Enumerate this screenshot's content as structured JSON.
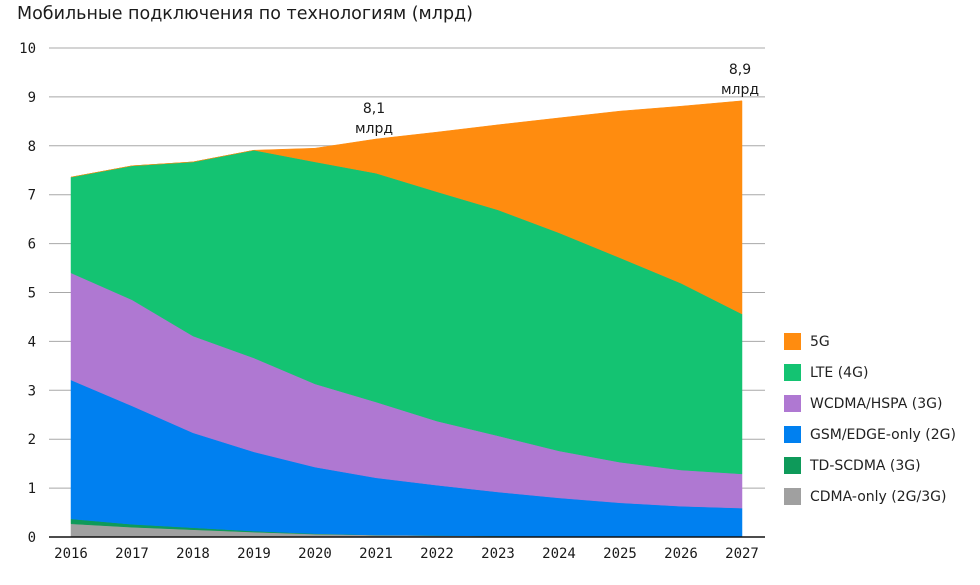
{
  "chart_data": {
    "type": "area",
    "stacked": true,
    "title": "Мобильные подключения по технологиям (млрд)",
    "xlabel": "",
    "ylabel": "",
    "ylim": [
      0,
      10
    ],
    "yticks": [
      "0",
      "1",
      "2",
      "3",
      "4",
      "5",
      "6",
      "7",
      "8",
      "9",
      "10"
    ],
    "grid": true,
    "legend_position": "right",
    "categories": [
      "2016",
      "2017",
      "2018",
      "2019",
      "2020",
      "2021",
      "2022",
      "2023",
      "2024",
      "2025",
      "2026",
      "2027"
    ],
    "series": [
      {
        "name": "CDMA-only (2G/3G)",
        "color": "#a0a0a0",
        "values": [
          0.27,
          0.2,
          0.15,
          0.1,
          0.06,
          0.04,
          0.03,
          0.02,
          0.01,
          0.01,
          0.01,
          0.01
        ]
      },
      {
        "name": "TD-SCDMA (3G)",
        "color": "#0e9a5a",
        "values": [
          0.1,
          0.06,
          0.04,
          0.02,
          0.01,
          0.0,
          0.0,
          0.0,
          0.0,
          0.0,
          0.0,
          0.0
        ]
      },
      {
        "name": "GSM/EDGE-only (2G)",
        "color": "#0080f0",
        "values": [
          2.84,
          2.42,
          1.94,
          1.62,
          1.36,
          1.17,
          1.03,
          0.9,
          0.79,
          0.69,
          0.62,
          0.58
        ]
      },
      {
        "name": "WCDMA/HSPA (3G)",
        "color": "#af78d2",
        "values": [
          2.19,
          2.17,
          1.98,
          1.92,
          1.7,
          1.55,
          1.31,
          1.15,
          0.96,
          0.83,
          0.74,
          0.7
        ]
      },
      {
        "name": "LTE (4G)",
        "color": "#14c372",
        "values": [
          1.96,
          2.74,
          3.56,
          4.25,
          4.54,
          4.68,
          4.69,
          4.62,
          4.46,
          4.18,
          3.82,
          3.27
        ]
      },
      {
        "name": "5G",
        "color": "#ff8c0f",
        "values": [
          0.0,
          0.0,
          0.0,
          0.0,
          0.28,
          0.7,
          1.22,
          1.74,
          2.35,
          3.0,
          3.62,
          4.36
        ]
      }
    ],
    "legend_order": [
      "5G",
      "LTE (4G)",
      "WCDMA/HSPA (3G)",
      "GSM/EDGE-only (2G)",
      "TD-SCDMA (3G)",
      "CDMA-only (2G/3G)"
    ],
    "annotations": [
      {
        "x": "2021",
        "value": 8.1,
        "line1": "8,1",
        "line2": "млрд"
      },
      {
        "x": "2027",
        "value": 8.9,
        "line1": "8,9",
        "line2": "млрд"
      }
    ]
  }
}
